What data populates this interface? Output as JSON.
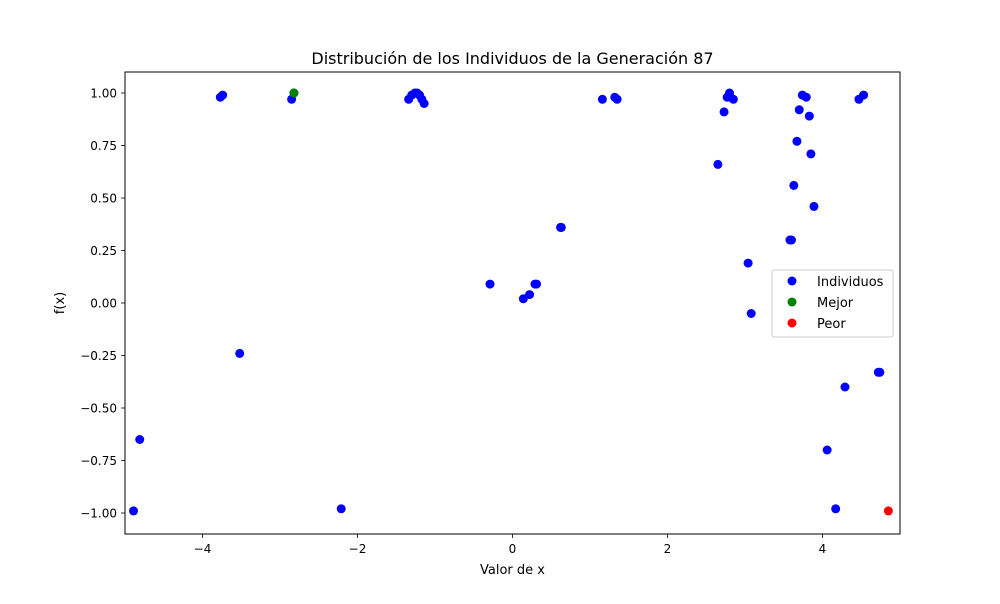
{
  "chart_data": {
    "type": "scatter",
    "title": "Distribución de los Individuos de la Generación 87",
    "xlabel": "Valor de x",
    "ylabel": "f(x)",
    "xlim": [
      -5.0,
      5.0
    ],
    "ylim": [
      -1.1,
      1.1
    ],
    "grid": false,
    "legend_position": "center-right",
    "x_ticks": [
      -4,
      -2,
      0,
      2,
      4
    ],
    "x_tick_labels": [
      "−4",
      "−2",
      "0",
      "2",
      "4"
    ],
    "y_ticks": [
      -1.0,
      -0.75,
      -0.5,
      -0.25,
      0.0,
      0.25,
      0.5,
      0.75,
      1.0
    ],
    "y_tick_labels": [
      "−1.00",
      "−0.75",
      "−0.50",
      "−0.25",
      "0.00",
      "0.25",
      "0.50",
      "0.75",
      "1.00"
    ],
    "series": [
      {
        "name": "Individuos",
        "color": "#0000ff",
        "x": [
          -4.89,
          -4.81,
          -3.77,
          -3.74,
          -3.52,
          -2.85,
          -2.82,
          -2.21,
          -1.34,
          -1.3,
          -1.26,
          -1.23,
          -1.2,
          -1.17,
          -1.14,
          -0.29,
          0.14,
          0.22,
          0.29,
          0.31,
          0.62,
          0.63,
          1.16,
          1.32,
          1.35,
          2.65,
          2.73,
          2.77,
          2.8,
          2.81,
          2.85,
          3.04,
          3.08,
          3.58,
          3.6,
          3.63,
          3.67,
          3.7,
          3.74,
          3.79,
          3.83,
          3.85,
          3.89,
          4.06,
          4.17,
          4.29,
          4.47,
          4.53,
          4.72,
          4.74
        ],
        "y": [
          -0.99,
          -0.65,
          0.98,
          0.99,
          -0.24,
          0.97,
          1.0,
          -0.98,
          0.97,
          0.99,
          1.0,
          1.0,
          0.99,
          0.97,
          0.95,
          0.09,
          0.02,
          0.04,
          0.09,
          0.09,
          0.36,
          0.36,
          0.97,
          0.98,
          0.97,
          0.66,
          0.91,
          0.98,
          1.0,
          0.98,
          0.97,
          0.19,
          -0.05,
          0.3,
          0.3,
          0.56,
          0.77,
          0.92,
          0.99,
          0.98,
          0.89,
          0.71,
          0.46,
          -0.7,
          -0.98,
          -0.4,
          0.97,
          0.99,
          -0.33,
          -0.33
        ]
      },
      {
        "name": "Mejor",
        "color": "#008000",
        "x": [
          -2.82
        ],
        "y": [
          1.0
        ]
      },
      {
        "name": "Peor",
        "color": "#ff0000",
        "x": [
          4.85
        ],
        "y": [
          -0.99
        ]
      }
    ]
  }
}
